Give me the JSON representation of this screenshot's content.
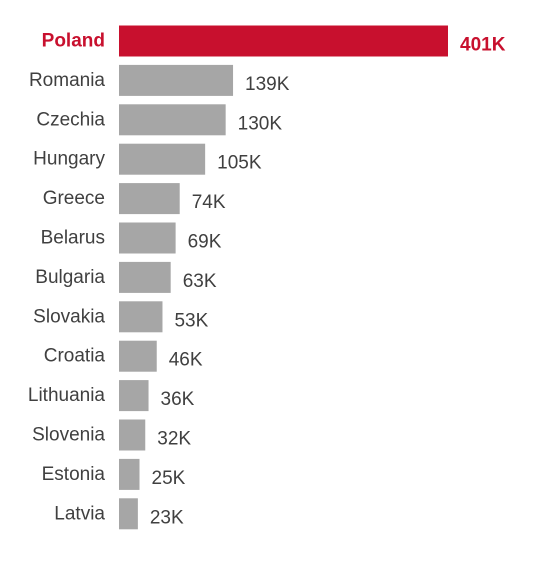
{
  "chart_data": {
    "type": "bar",
    "orientation": "horizontal",
    "categories": [
      "Poland",
      "Romania",
      "Czechia",
      "Hungary",
      "Greece",
      "Belarus",
      "Bulgaria",
      "Slovakia",
      "Croatia",
      "Lithuania",
      "Slovenia",
      "Estonia",
      "Latvia"
    ],
    "values": [
      401,
      139,
      130,
      105,
      74,
      69,
      63,
      53,
      46,
      36,
      32,
      25,
      23
    ],
    "value_labels": [
      "401K",
      "139K",
      "130K",
      "105K",
      "74K",
      "69K",
      "63K",
      "53K",
      "46K",
      "36K",
      "32K",
      "25K",
      "23K"
    ],
    "highlight": "Poland",
    "colors": {
      "highlight": "#c8102e",
      "bar": "#a6a6a6",
      "label": "#404040",
      "highlight_label": "#c8102e"
    },
    "xlim": [
      0,
      401
    ],
    "grid": false,
    "legend": "none",
    "title": "",
    "xlabel": "",
    "ylabel": ""
  }
}
